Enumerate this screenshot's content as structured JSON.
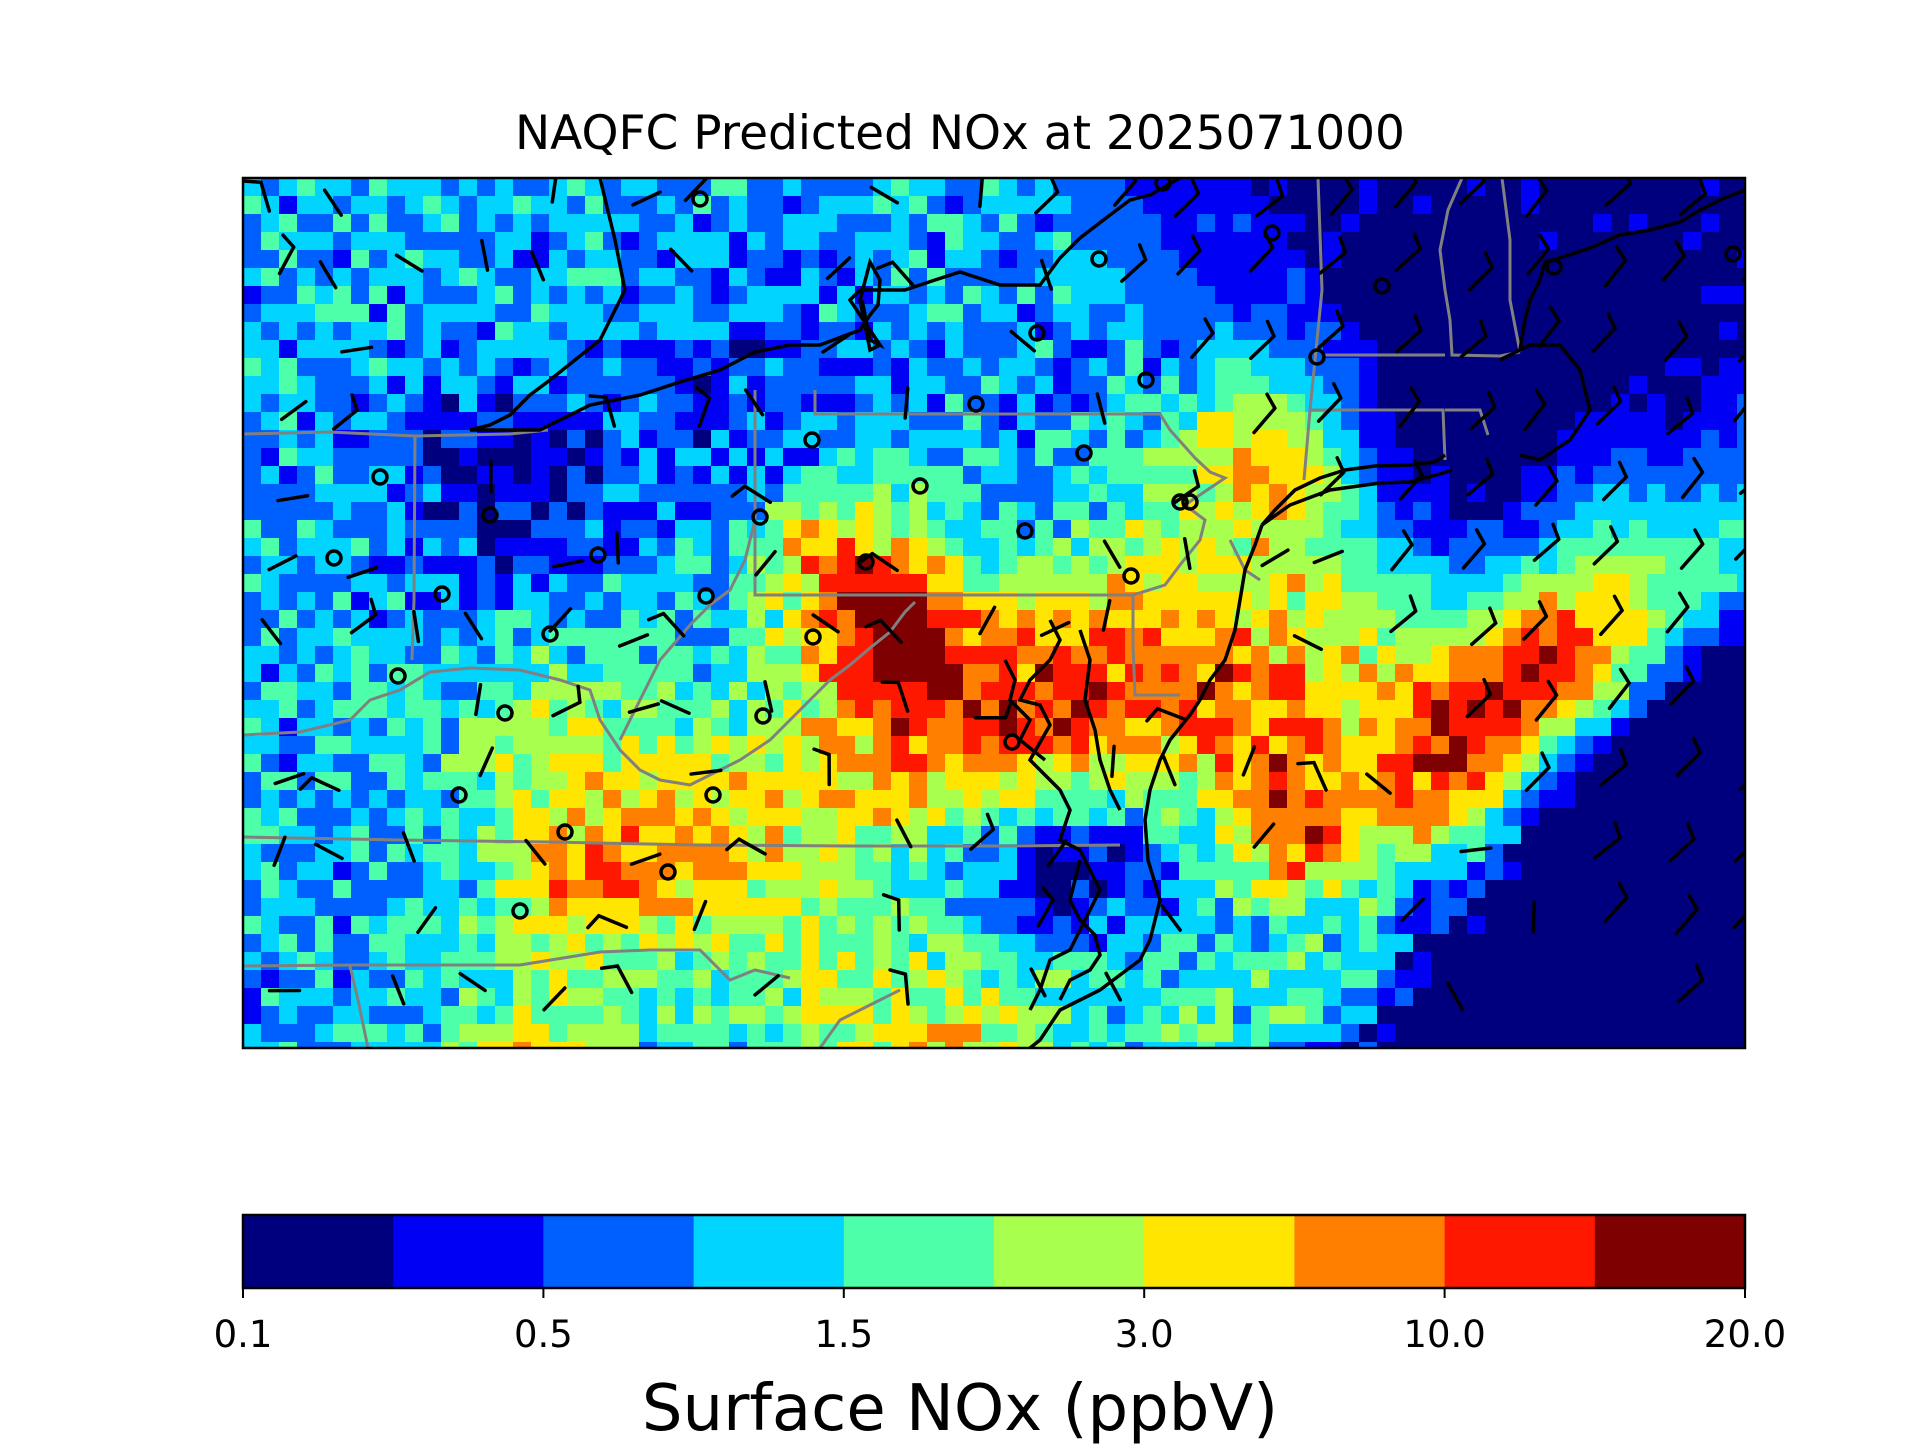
{
  "figure": {
    "title": "NAQFC Predicted NOx at 2025071000"
  },
  "colorbar": {
    "label": "Surface NOx (ppbV)",
    "ticks": [
      "0.1",
      "0.5",
      "1.5",
      "3.0",
      "10.0",
      "20.0"
    ],
    "colors": [
      "#00007f",
      "#0000f5",
      "#0060ff",
      "#00d4ff",
      "#4dffa8",
      "#a8ff4d",
      "#ffe500",
      "#ff7f00",
      "#ff1800",
      "#7f0000"
    ]
  },
  "map": {
    "region": "US Mid-Atlantic and Northeast",
    "layers": [
      "surface NOx concentration",
      "coastlines",
      "state borders",
      "wind barbs",
      "monitoring sites"
    ],
    "border_color": "#808080",
    "coast_color": "#000000"
  }
}
